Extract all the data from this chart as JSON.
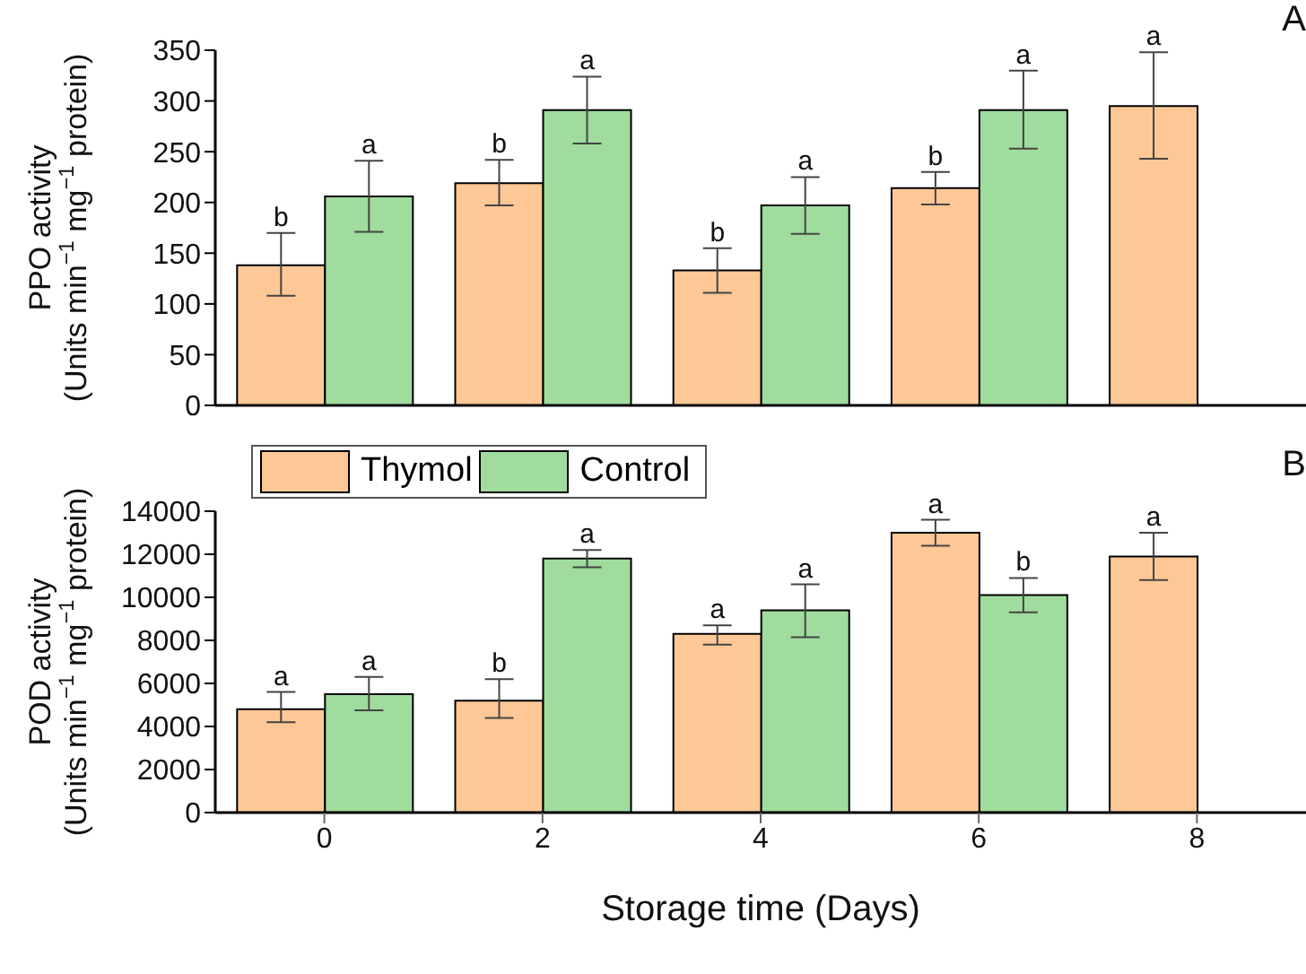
{
  "chart_data": [
    {
      "type": "bar",
      "categories": [
        "0",
        "2",
        "4",
        "6",
        "8"
      ],
      "ylabel": "PPO activity\n(Units min$^{−1}$ mg$^{−1}$ protein)",
      "ylim": [
        0,
        350
      ],
      "yticks": [
        0,
        50,
        100,
        150,
        200,
        250,
        300,
        350
      ],
      "tick_labels": "y",
      "legend": false,
      "annotations": [
        "A"
      ],
      "series": [
        {
          "color": "#fdc896",
          "values": [
            138,
            219,
            133,
            214,
            295
          ],
          "errors": [
            [
              108,
              170
            ],
            [
              197,
              242
            ],
            [
              111,
              155
            ],
            [
              198,
              230
            ],
            [
              243,
              348
            ]
          ],
          "value_labels": [
            "b",
            "b",
            "b",
            "b",
            "a"
          ]
        },
        {
          "color": "#9fdc9e",
          "values": [
            206,
            291,
            197,
            291,
            null
          ],
          "errors": [
            [
              171,
              241
            ],
            [
              258,
              324
            ],
            [
              169,
              225
            ],
            [
              253,
              330
            ],
            null
          ],
          "value_labels": [
            "a",
            "a",
            "a",
            "a",
            null
          ]
        }
      ]
    },
    {
      "type": "bar",
      "categories": [
        "0",
        "2",
        "4",
        "6",
        "8"
      ],
      "xlabel": "Storage time (Days)",
      "ylabel": "POD activity\n(Units min$^{−1}$ mg$^{−1}$ protein)",
      "ylim": [
        0,
        14000
      ],
      "yticks": [
        0,
        2000,
        4000,
        6000,
        8000,
        10000,
        12000,
        14000
      ],
      "legend": "top left",
      "annotations": [
        "B"
      ],
      "series": [
        {
          "name": "Thymol",
          "color": "#fdc896",
          "values": [
            4800,
            5200,
            8300,
            13000,
            11900
          ],
          "errors": [
            [
              4200,
              5600
            ],
            [
              4400,
              6200
            ],
            [
              7800,
              8700
            ],
            [
              12400,
              13600
            ],
            [
              10800,
              13000
            ]
          ],
          "value_labels": [
            "a",
            "b",
            "a",
            "a",
            "a"
          ]
        },
        {
          "name": "Control",
          "color": "#9fdc9e",
          "values": [
            5500,
            11800,
            9400,
            10100,
            null
          ],
          "errors": [
            [
              4750,
              6300
            ],
            [
              11400,
              12200
            ],
            [
              8150,
              10600
            ],
            [
              9300,
              10900
            ],
            null
          ],
          "value_labels": [
            "a",
            "a",
            "a",
            "b",
            null
          ]
        }
      ]
    }
  ]
}
